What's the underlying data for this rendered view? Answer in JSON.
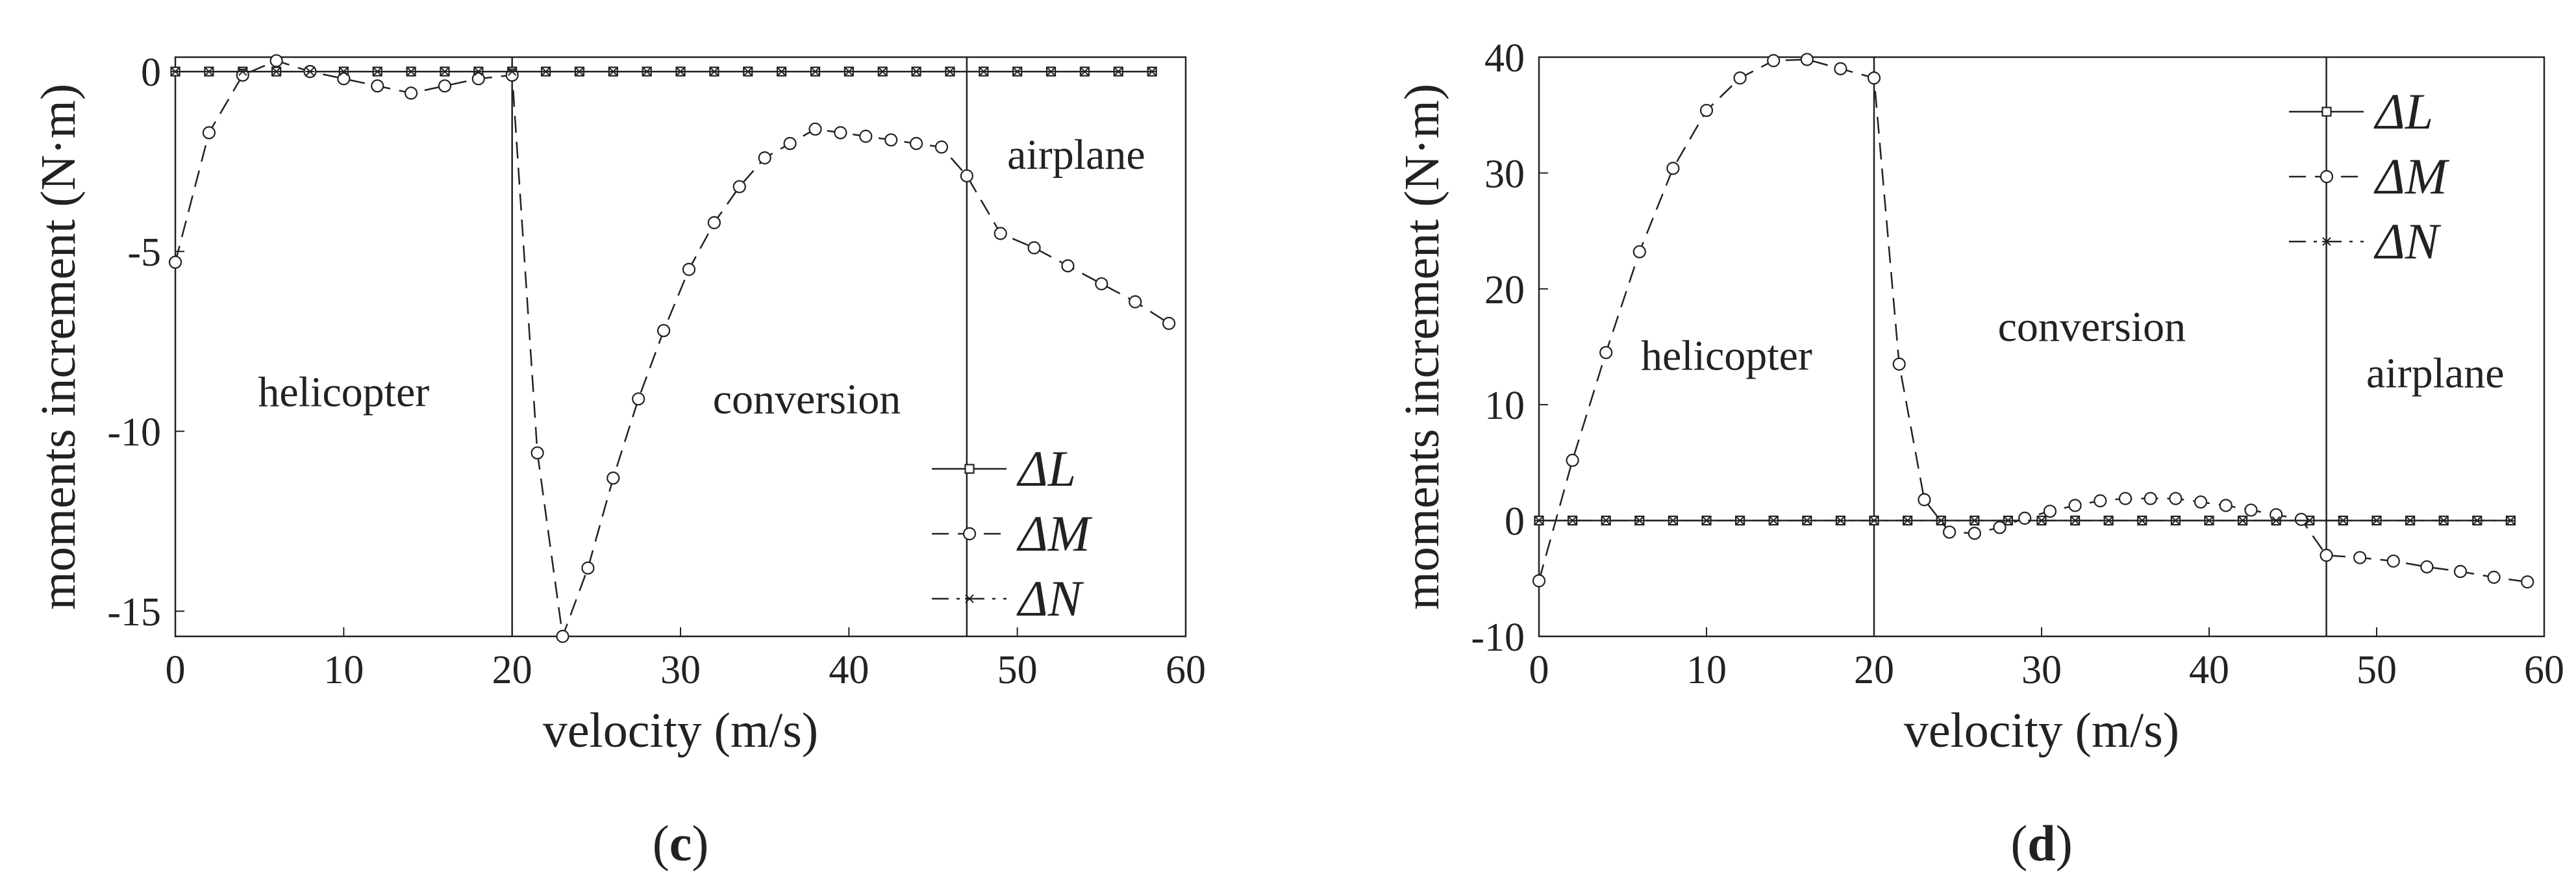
{
  "chart_data": [
    {
      "type": "line",
      "panel_label": "c",
      "xlabel": "velocity (m/s)",
      "ylabel": "moments increment (N·m)",
      "xlim": [
        0,
        60
      ],
      "ylim": [
        -15.7,
        0.4
      ],
      "xticks": [
        0,
        10,
        20,
        30,
        40,
        50,
        60
      ],
      "yticks": [
        0,
        -5,
        -10,
        -15
      ],
      "ytick_labels": [
        "0",
        "-5",
        "-10",
        "-15"
      ],
      "grid": false,
      "legend_position": "bottom-right",
      "region_boundaries": [
        20,
        47
      ],
      "region_labels": [
        {
          "text": "helicopter",
          "x": 10,
          "y": -9.3
        },
        {
          "text": "conversion",
          "x": 37.5,
          "y": -9.5
        },
        {
          "text": "airplane",
          "x": 53.5,
          "y": -2.7
        }
      ],
      "series": [
        {
          "name": "ΔL",
          "symbol": "ΔL",
          "marker": "square",
          "dash": "solid",
          "x": [
            0,
            2,
            4,
            6,
            8,
            10,
            12,
            14,
            16,
            18,
            20,
            22,
            24,
            26,
            28,
            30,
            32,
            34,
            36,
            38,
            40,
            42,
            44,
            46,
            48,
            50,
            52,
            54,
            56,
            58
          ],
          "y": [
            0,
            0,
            0,
            0,
            0,
            0,
            0,
            0,
            0,
            0,
            0,
            0,
            0,
            0,
            0,
            0,
            0,
            0,
            0,
            0,
            0,
            0,
            0,
            0,
            0,
            0,
            0,
            0,
            0,
            0
          ]
        },
        {
          "name": "ΔM",
          "symbol": "ΔM",
          "marker": "circle",
          "dash": "dashed",
          "x": [
            0,
            2,
            4,
            6,
            8,
            10,
            12,
            14,
            16,
            18,
            20,
            21.5,
            23,
            24.5,
            26,
            27.5,
            29,
            30.5,
            32,
            33.5,
            35,
            36.5,
            38,
            39.5,
            41,
            42.5,
            44,
            45.5,
            47,
            49,
            51,
            53,
            55,
            57,
            59
          ],
          "y": [
            -5.3,
            -1.7,
            -0.1,
            0.3,
            0.0,
            -0.2,
            -0.4,
            -0.6,
            -0.4,
            -0.2,
            -0.1,
            -10.6,
            -15.7,
            -13.8,
            -11.3,
            -9.1,
            -7.2,
            -5.5,
            -4.2,
            -3.2,
            -2.4,
            -2.0,
            -1.6,
            -1.7,
            -1.8,
            -1.9,
            -2.0,
            -2.1,
            -2.9,
            -4.5,
            -4.9,
            -5.4,
            -5.9,
            -6.4,
            -7.0
          ]
        },
        {
          "name": "ΔN",
          "symbol": "ΔN",
          "marker": "star",
          "dash": "dashdot",
          "x": [
            0,
            2,
            4,
            6,
            8,
            10,
            12,
            14,
            16,
            18,
            20,
            22,
            24,
            26,
            28,
            30,
            32,
            34,
            36,
            38,
            40,
            42,
            44,
            46,
            48,
            50,
            52,
            54,
            56,
            58
          ],
          "y": [
            0,
            0,
            0,
            0,
            0,
            0,
            0,
            0,
            0,
            0,
            0,
            0,
            0,
            0,
            0,
            0,
            0,
            0,
            0,
            0,
            0,
            0,
            0,
            0,
            0,
            0,
            0,
            0,
            0,
            0
          ]
        }
      ]
    },
    {
      "type": "line",
      "panel_label": "d",
      "xlabel": "velocity (m/s)",
      "ylabel": "moments increment (N·m)",
      "xlim": [
        0,
        60
      ],
      "ylim": [
        -10,
        40
      ],
      "xticks": [
        0,
        10,
        20,
        30,
        40,
        50,
        60
      ],
      "yticks": [
        40,
        30,
        20,
        10,
        0,
        -10
      ],
      "ytick_labels": [
        "40",
        "30",
        "20",
        "10",
        "0",
        "-10"
      ],
      "grid": false,
      "legend_position": "top-right",
      "region_boundaries": [
        20,
        47
      ],
      "region_labels": [
        {
          "text": "helicopter",
          "x": 11.2,
          "y": 13
        },
        {
          "text": "conversion",
          "x": 33,
          "y": 15.5
        },
        {
          "text": "airplane",
          "x": 53.5,
          "y": 11.5
        }
      ],
      "series": [
        {
          "name": "ΔL",
          "symbol": "ΔL",
          "marker": "square",
          "dash": "solid",
          "x": [
            0,
            2,
            4,
            6,
            8,
            10,
            12,
            14,
            16,
            18,
            20,
            22,
            24,
            26,
            28,
            30,
            32,
            34,
            36,
            38,
            40,
            42,
            44,
            46,
            48,
            50,
            52,
            54,
            56,
            58
          ],
          "y": [
            0,
            0,
            0,
            0,
            0,
            0,
            0,
            0,
            0,
            0,
            0,
            0,
            0,
            0,
            0,
            0,
            0,
            0,
            0,
            0,
            0,
            0,
            0,
            0,
            0,
            0,
            0,
            0,
            0,
            0
          ]
        },
        {
          "name": "ΔM",
          "symbol": "ΔM",
          "marker": "circle",
          "dash": "dashed",
          "x": [
            0,
            2,
            4,
            6,
            8,
            10,
            12,
            14,
            16,
            18,
            20,
            21.5,
            23,
            24.5,
            26,
            27.5,
            29,
            30.5,
            32,
            33.5,
            35,
            36.5,
            38,
            39.5,
            41,
            42.5,
            44,
            45.5,
            47,
            49,
            51,
            53,
            55,
            57,
            59
          ],
          "y": [
            -5.2,
            5.2,
            14.5,
            23.2,
            30.4,
            35.4,
            38.2,
            39.7,
            39.8,
            39.0,
            38.2,
            13.5,
            1.8,
            -1.0,
            -1.1,
            -0.6,
            0.2,
            0.8,
            1.3,
            1.7,
            1.9,
            1.9,
            1.9,
            1.6,
            1.3,
            0.9,
            0.5,
            0.1,
            -3.0,
            -3.2,
            -3.5,
            -4.0,
            -4.4,
            -4.9,
            -5.3
          ]
        },
        {
          "name": "ΔN",
          "symbol": "ΔN",
          "marker": "star",
          "dash": "dashdot",
          "x": [
            0,
            2,
            4,
            6,
            8,
            10,
            12,
            14,
            16,
            18,
            20,
            22,
            24,
            26,
            28,
            30,
            32,
            34,
            36,
            38,
            40,
            42,
            44,
            46,
            48,
            50,
            52,
            54,
            56,
            58
          ],
          "y": [
            0,
            0,
            0,
            0,
            0,
            0,
            0,
            0,
            0,
            0,
            0,
            0,
            0,
            0,
            0,
            0,
            0,
            0,
            0,
            0,
            0,
            0,
            0,
            0,
            0,
            0,
            0,
            0,
            0,
            0
          ]
        }
      ]
    }
  ]
}
